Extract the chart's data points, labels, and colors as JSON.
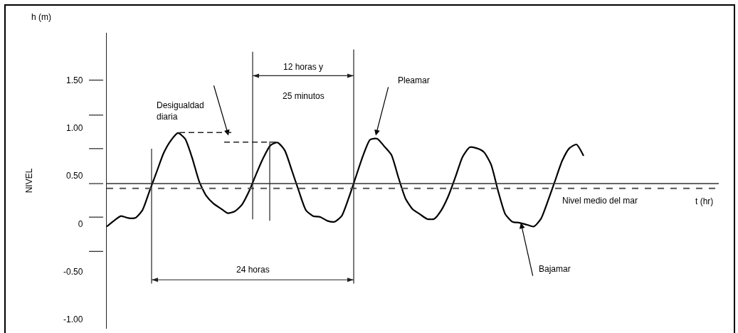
{
  "chart_data": {
    "type": "line",
    "ylabel": "NIVEL",
    "categories": [
      null,
      null,
      null,
      null,
      null,
      null,
      null,
      null,
      null,
      null,
      null,
      null,
      null,
      null,
      null,
      null,
      null,
      null,
      null,
      null,
      null,
      null,
      null,
      null,
      null,
      null,
      null,
      null,
      null,
      null,
      null,
      null,
      null,
      null,
      null,
      null,
      null,
      null,
      null,
      null,
      null,
      null,
      null,
      null,
      null,
      null,
      null,
      null,
      null,
      null,
      null,
      null,
      null,
      null,
      null,
      null,
      null,
      null,
      null,
      null,
      null,
      null,
      null,
      null,
      null,
      null,
      null,
      null
    ],
    "series": [
      {
        "color": "#000000",
        "values": [
          -0.03,
          0.03,
          0.08,
          0.06,
          0.06,
          0.14,
          0.34,
          0.54,
          0.74,
          0.87,
          0.95,
          0.89,
          0.69,
          0.44,
          0.29,
          0.21,
          0.16,
          0.11,
          0.13,
          0.2,
          0.34,
          0.52,
          0.69,
          0.82,
          0.85,
          0.77,
          0.56,
          0.34,
          0.14,
          0.08,
          0.07,
          0.03,
          0.02,
          0.08,
          0.27,
          0.49,
          0.71,
          0.88,
          0.89,
          0.81,
          0.72,
          0.48,
          0.26,
          0.15,
          0.1,
          0.05,
          0.05,
          0.14,
          0.29,
          0.49,
          0.7,
          0.8,
          0.79,
          0.75,
          0.62,
          0.34,
          0.1,
          0.02,
          0.01,
          -0.01,
          -0.03,
          0.05,
          0.24,
          0.45,
          0.66,
          0.79,
          0.83,
          0.71
        ]
      }
    ],
    "ylim": [
      -1.1,
      2.0
    ],
    "yticks": [
      {
        "value": 1.5,
        "label": "1.50"
      },
      {
        "value": 1,
        "label": "1.00"
      },
      {
        "value": 0.5,
        "label": "0.50"
      },
      0,
      {
        "value": -0.5,
        "label": "-0.50"
      },
      {
        "value": -1,
        "label": "-1.00"
      }
    ],
    "tick_labels": "y",
    "grid": false,
    "marker": "none",
    "line_style": "solid",
    "ref_lines": [
      {
        "axis": "y",
        "value": 0.42,
        "color": "#333333",
        "line_style": "solid"
      },
      {
        "axis": "y",
        "value": 0.37,
        "label": "Nivel medio del mar",
        "color": "#555555",
        "line_style": "dashed"
      }
    ],
    "annotations": [
      "h (m)",
      "Desigualdad diaria",
      "12 horas y",
      "25 minutos",
      "24 horas",
      "Pleamar",
      "Bajamar",
      "t (hr)"
    ]
  }
}
